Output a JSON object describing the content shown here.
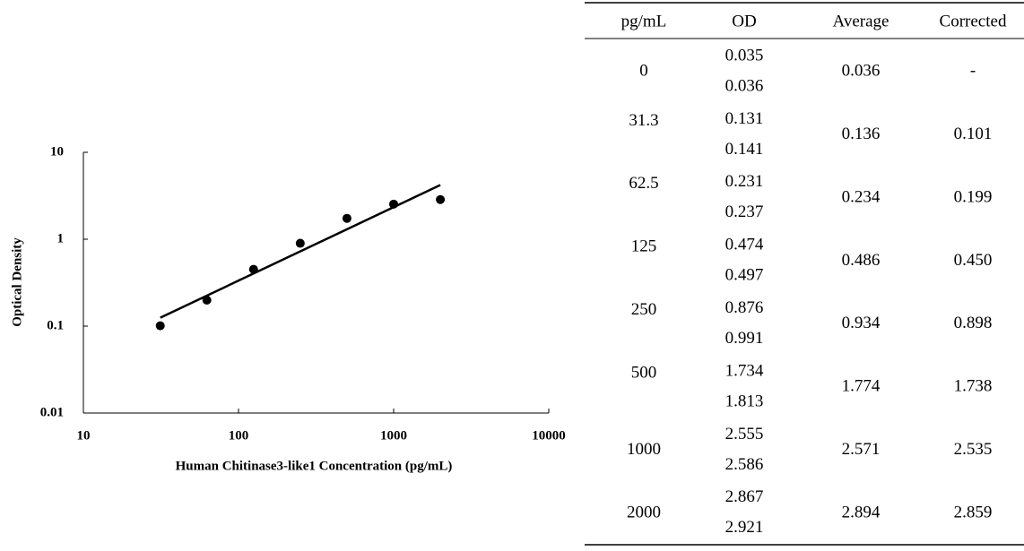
{
  "chart_data": {
    "type": "scatter",
    "x_label": "Human Chitinase3-like1 Concentration (pg/mL)",
    "y_label": "Optical Density",
    "x": [
      31.3,
      62.5,
      125,
      250,
      500,
      1000,
      2000
    ],
    "values": [
      0.101,
      0.199,
      0.45,
      0.898,
      1.738,
      2.535,
      2.859
    ],
    "color": "#000000",
    "trendline": {
      "x": [
        31.3,
        2000
      ],
      "values": [
        0.125,
        4.2
      ],
      "color": "#000000"
    },
    "xscale": "log",
    "yscale": "log",
    "xlim": [
      10,
      10000
    ],
    "xticks": [
      10,
      100,
      1000,
      10000
    ],
    "ylim": [
      0.01,
      10
    ],
    "yticks": [
      0.01,
      0.1,
      1,
      10
    ]
  },
  "table": {
    "header": [
      "pg/mL",
      "OD",
      "Average",
      "Corrected"
    ],
    "rows": [
      {
        "conc": "0",
        "od": [
          "0.035",
          "0.036"
        ],
        "average": "0.036",
        "corrected": "-"
      },
      {
        "conc": "31.3",
        "od": [
          "0.131",
          "0.141"
        ],
        "average": "0.136",
        "corrected": "0.101"
      },
      {
        "conc": "62.5",
        "od": [
          "0.231",
          "0.237"
        ],
        "average": "0.234",
        "corrected": "0.199"
      },
      {
        "conc": "125",
        "od": [
          "0.474",
          "0.497"
        ],
        "average": "0.486",
        "corrected": "0.450"
      },
      {
        "conc": "250",
        "od": [
          "0.876",
          "0.991"
        ],
        "average": "0.934",
        "corrected": "0.898"
      },
      {
        "conc": "500",
        "od": [
          "1.734",
          "1.813"
        ],
        "average": "1.774",
        "corrected": "1.738"
      },
      {
        "conc": "1000",
        "od": [
          "2.555",
          "2.586"
        ],
        "average": "2.571",
        "corrected": "2.535"
      },
      {
        "conc": "2000",
        "od": [
          "2.867",
          "2.921"
        ],
        "average": "2.894",
        "corrected": "2.859"
      }
    ]
  }
}
